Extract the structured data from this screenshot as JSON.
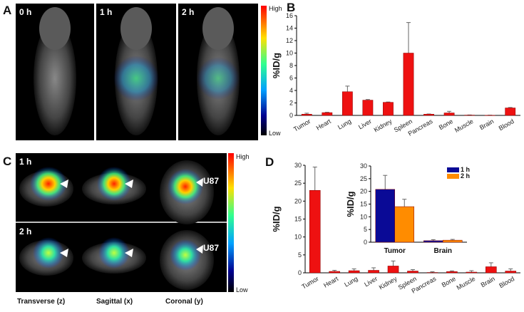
{
  "panels": {
    "a": "A",
    "b": "B",
    "c": "C",
    "d": "D"
  },
  "panel_a": {
    "times": [
      "0 h",
      "1 h",
      "2 h"
    ],
    "colorbar": {
      "high": "High",
      "low": "Low"
    }
  },
  "panel_c": {
    "rows": [
      "1 h",
      "2 h"
    ],
    "views": [
      "Transverse (z)",
      "Sagittal (x)",
      "Coronal (y)"
    ],
    "tumor_label": "U87",
    "colorbar": {
      "high": "High",
      "low": "Low"
    }
  },
  "chart_data": [
    {
      "type": "bar",
      "title": "",
      "panel": "B",
      "ylabel": "%ID/g",
      "xlabel": "",
      "ylim": [
        0,
        16
      ],
      "yticks": [
        0,
        2,
        4,
        6,
        8,
        10,
        12,
        14,
        16
      ],
      "categories": [
        "Tumor",
        "Heart",
        "Lung",
        "Liver",
        "Kidney",
        "Spleen",
        "Pancreas",
        "Bone",
        "Muscle",
        "Brain",
        "Blood"
      ],
      "values": [
        0.2,
        0.45,
        3.8,
        2.45,
        2.1,
        10.0,
        0.2,
        0.4,
        0.05,
        0.02,
        1.2
      ],
      "errors": [
        0.15,
        0.05,
        0.9,
        0.1,
        0.05,
        4.9,
        0.03,
        0.25,
        0.02,
        0.02,
        0.07
      ],
      "color": "#ee1111"
    },
    {
      "type": "bar",
      "title": "",
      "panel": "D",
      "ylabel": "%ID/g",
      "xlabel": "",
      "ylim": [
        0,
        30
      ],
      "yticks": [
        0,
        5,
        10,
        15,
        20,
        25,
        30
      ],
      "categories": [
        "Tumor",
        "Heart",
        "Lung",
        "Liver",
        "Kidney",
        "Spleen",
        "Pancreas",
        "Bone",
        "Muscle",
        "Brain",
        "Blood"
      ],
      "values": [
        23,
        0.4,
        0.6,
        0.7,
        1.9,
        0.5,
        0.1,
        0.35,
        0.2,
        1.7,
        0.5
      ],
      "errors": [
        6.5,
        0.3,
        0.5,
        0.7,
        1.4,
        0.4,
        0.2,
        0.2,
        0.4,
        1.1,
        0.6
      ],
      "color": "#ee1111"
    },
    {
      "type": "bar",
      "title": "",
      "panel": "D-inset",
      "ylabel": "%ID/g",
      "xlabel": "",
      "ylim": [
        0,
        30
      ],
      "yticks": [
        0,
        5,
        10,
        15,
        20,
        25,
        30
      ],
      "categories": [
        "Tumor",
        "Brain"
      ],
      "legend_position": "top-right",
      "series": [
        {
          "name": "1 h",
          "values": [
            20.8,
            0.6
          ],
          "errors": [
            5.5,
            0.4
          ],
          "color": "#0a0a96"
        },
        {
          "name": "2 h",
          "values": [
            14,
            0.8
          ],
          "errors": [
            2.9,
            0.3
          ],
          "color": "#ff8c00"
        }
      ]
    }
  ]
}
